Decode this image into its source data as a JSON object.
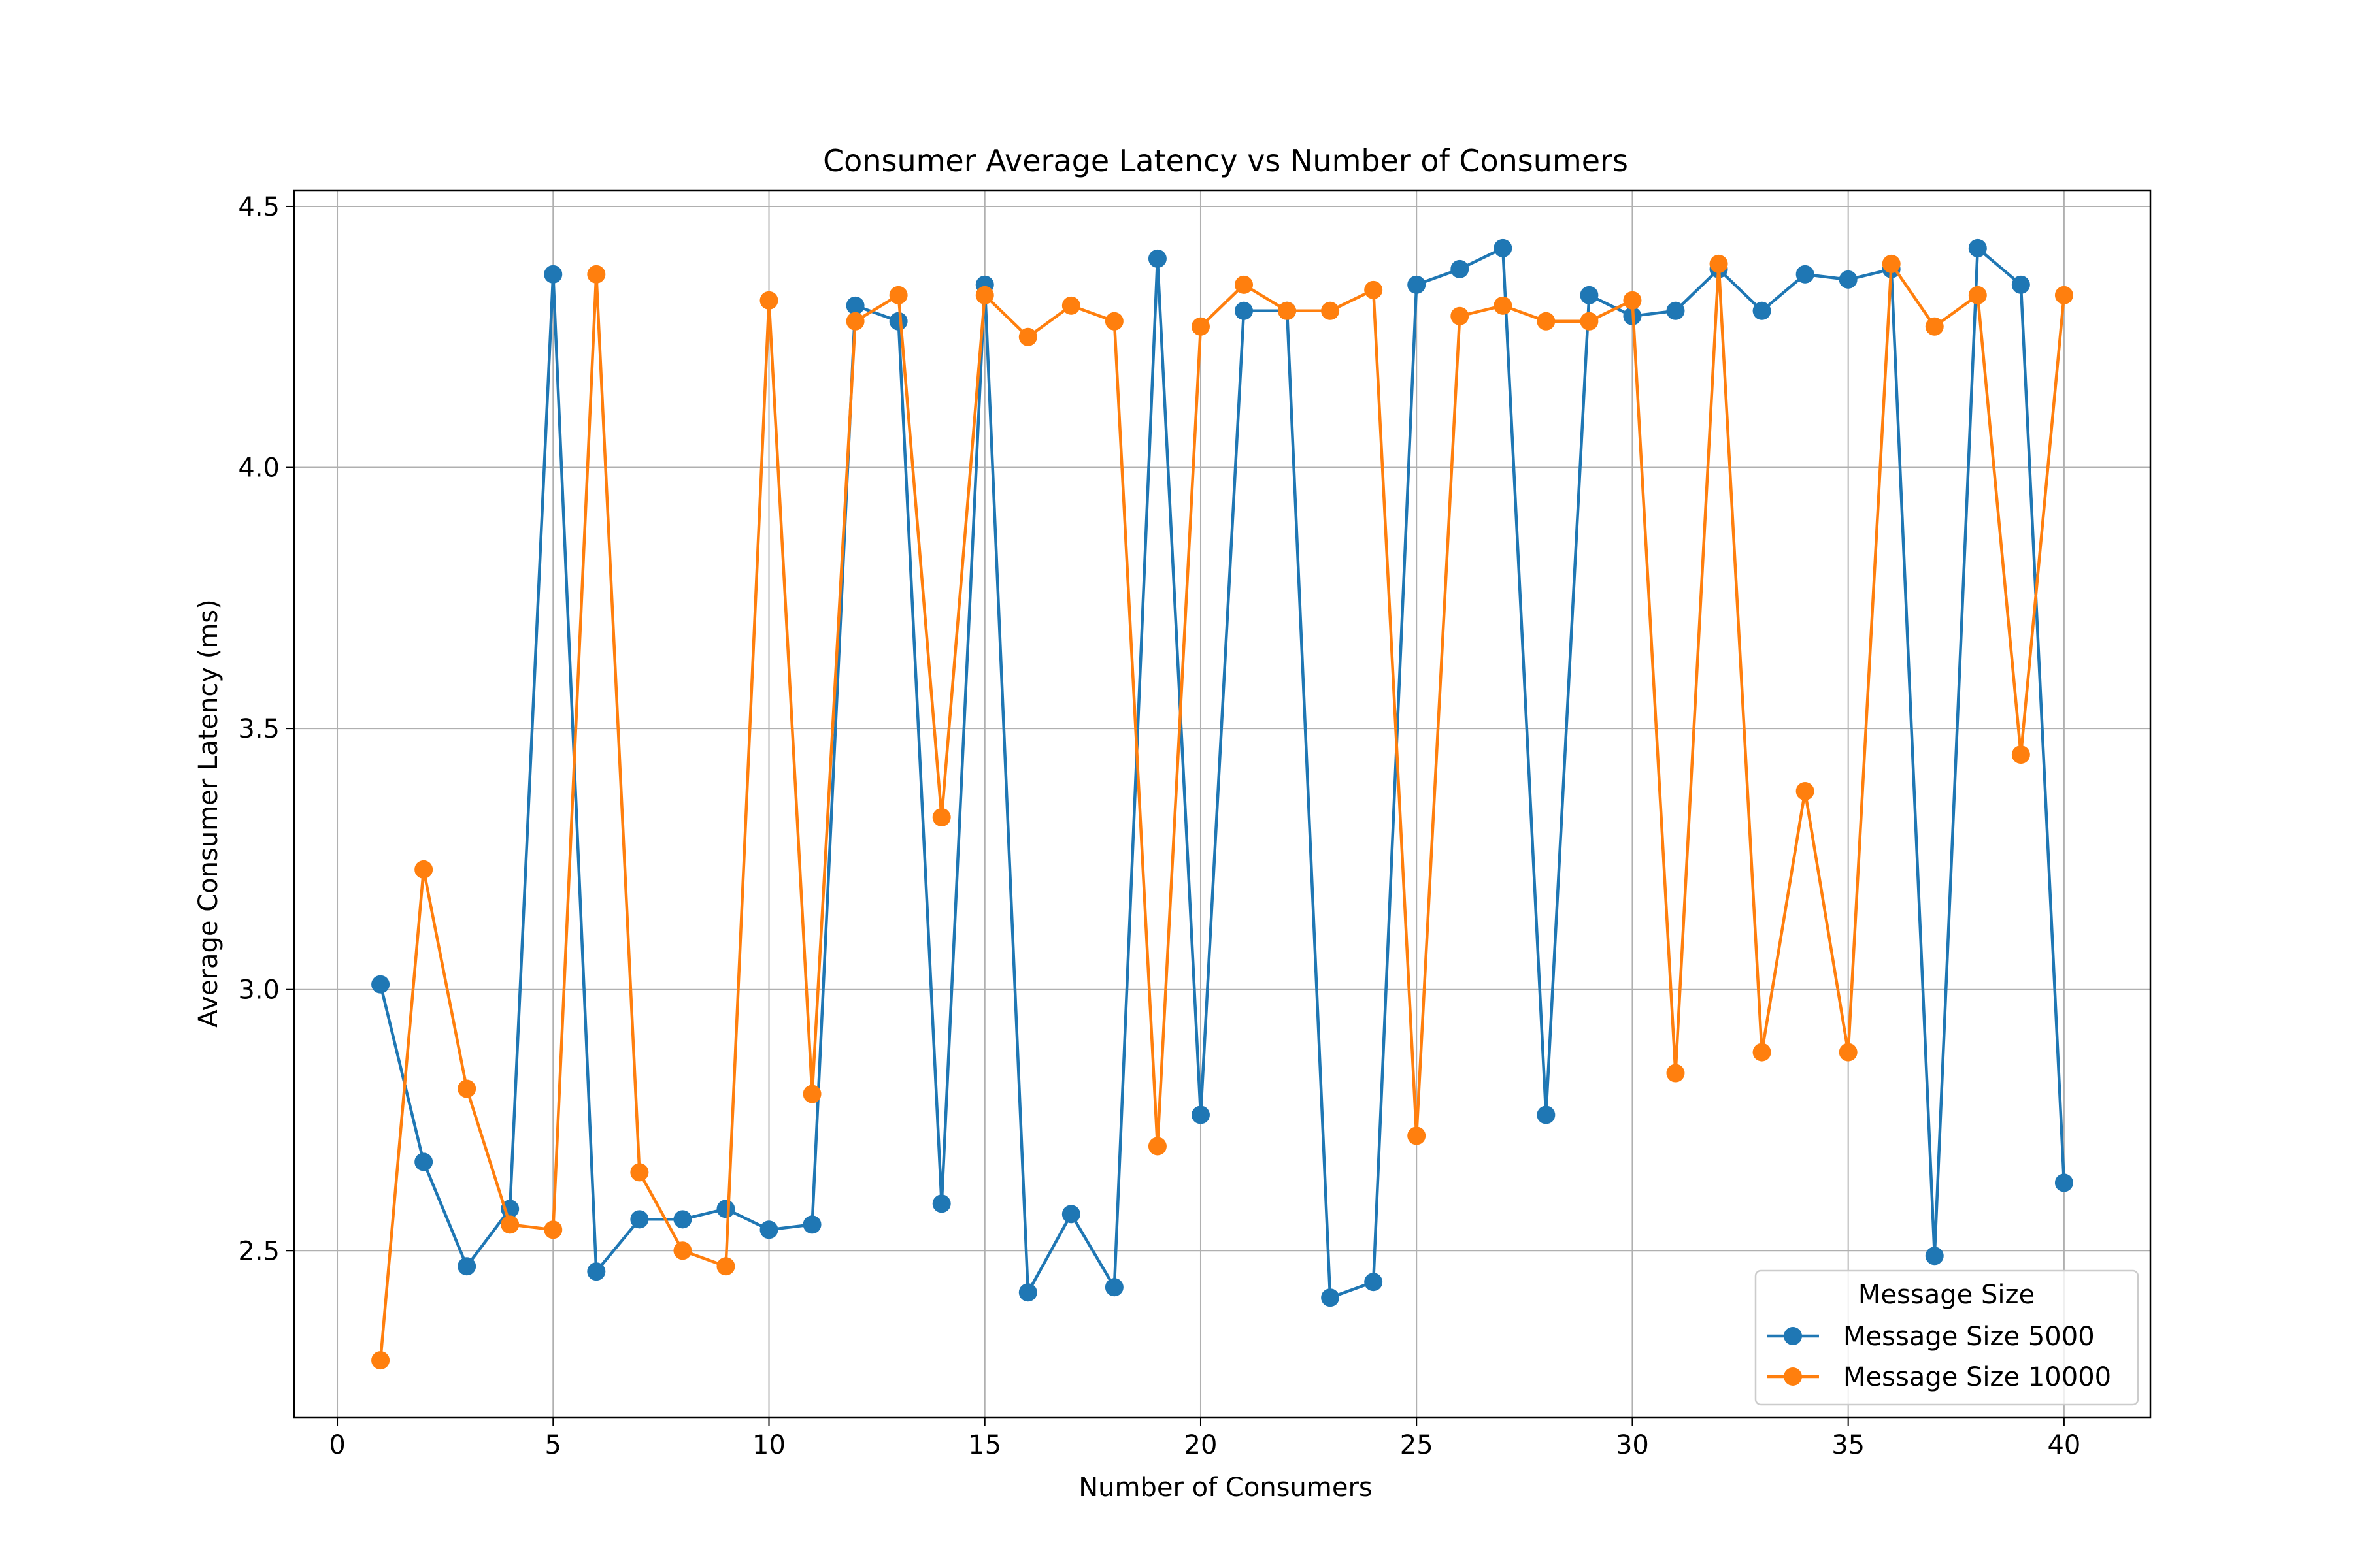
{
  "chart_data": {
    "type": "line",
    "title": "Consumer Average Latency vs Number of Consumers",
    "xlabel": "Number of Consumers",
    "ylabel": "Average Consumer Latency (ms)",
    "xlim": [
      -1,
      42
    ],
    "ylim": [
      2.18,
      4.53
    ],
    "xticks": [
      0,
      5,
      10,
      15,
      20,
      25,
      30,
      35,
      40
    ],
    "xtick_labels": [
      "0",
      "5",
      "10",
      "15",
      "20",
      "25",
      "30",
      "35",
      "40"
    ],
    "yticks": [
      2.5,
      3.0,
      3.5,
      4.0,
      4.5
    ],
    "ytick_labels": [
      "2.5",
      "3.0",
      "3.5",
      "4.0",
      "4.5"
    ],
    "grid": true,
    "legend": {
      "title": "Message Size",
      "position": "lower-right"
    },
    "x": [
      1,
      2,
      3,
      4,
      5,
      6,
      7,
      8,
      9,
      10,
      11,
      12,
      13,
      14,
      15,
      16,
      17,
      18,
      19,
      20,
      21,
      22,
      23,
      24,
      25,
      26,
      27,
      28,
      29,
      30,
      31,
      32,
      33,
      34,
      35,
      36,
      37,
      38,
      39,
      40
    ],
    "series": [
      {
        "name": "Message Size 5000",
        "color": "#1f77b4",
        "values": [
          3.01,
          2.67,
          2.47,
          2.58,
          4.37,
          2.46,
          2.56,
          2.56,
          2.58,
          2.54,
          2.55,
          4.31,
          4.28,
          2.59,
          4.35,
          2.42,
          2.57,
          2.43,
          4.4,
          2.76,
          4.3,
          4.3,
          2.41,
          2.44,
          4.35,
          4.38,
          4.42,
          2.76,
          4.33,
          4.29,
          4.3,
          4.38,
          4.3,
          4.37,
          4.36,
          4.38,
          2.49,
          4.42,
          4.35,
          2.63
        ]
      },
      {
        "name": "Message Size 10000",
        "color": "#ff7f0e",
        "values": [
          2.29,
          3.23,
          2.81,
          2.55,
          2.54,
          4.37,
          2.65,
          2.5,
          2.47,
          4.32,
          2.8,
          4.28,
          4.33,
          3.33,
          4.33,
          4.25,
          4.31,
          4.28,
          2.7,
          4.27,
          4.35,
          4.3,
          4.3,
          4.34,
          2.72,
          4.29,
          4.31,
          4.28,
          4.28,
          4.32,
          2.84,
          4.39,
          2.88,
          3.38,
          2.88,
          4.39,
          4.27,
          4.33,
          3.45,
          4.33
        ]
      }
    ]
  }
}
